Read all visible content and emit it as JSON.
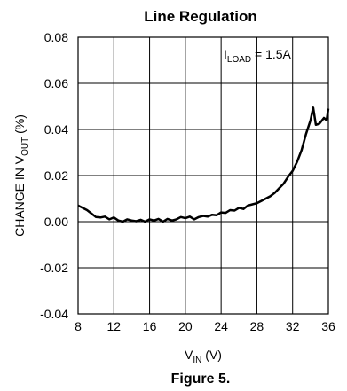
{
  "chart_data": {
    "type": "line",
    "title": "Line Regulation",
    "xlabel": {
      "main": "V",
      "sub": "IN",
      "unit": " (V)"
    },
    "ylabel": {
      "prefix": "CHANGE IN V",
      "sub": "OUT",
      "suffix": " (%)"
    },
    "xlim": [
      8,
      36
    ],
    "ylim": [
      -0.04,
      0.08
    ],
    "xticks": [
      8,
      12,
      16,
      20,
      24,
      28,
      32,
      36
    ],
    "yticks": [
      -0.04,
      -0.02,
      0.0,
      0.02,
      0.04,
      0.06,
      0.08
    ],
    "xtick_labels": [
      "8",
      "12",
      "16",
      "20",
      "24",
      "28",
      "32",
      "36"
    ],
    "ytick_labels": [
      "-0.04",
      "-0.02",
      "0.00",
      "0.02",
      "0.04",
      "0.06",
      "0.08"
    ],
    "grid": true,
    "annotation": {
      "main": "I",
      "sub": "LOAD",
      "suffix": " = 1.5A"
    },
    "series": [
      {
        "x": [
          8,
          8.5,
          9,
          9.5,
          10,
          10.5,
          11,
          11.5,
          12,
          12.5,
          13,
          13.5,
          14,
          14.5,
          15,
          15.5,
          16,
          16.5,
          17,
          17.5,
          18,
          18.5,
          19,
          19.5,
          20,
          20.5,
          21,
          21.5,
          22,
          22.5,
          23,
          23.5,
          24,
          24.5,
          25,
          25.5,
          26,
          26.5,
          27,
          27.5,
          28,
          28.5,
          29,
          29.5,
          30,
          30.5,
          31,
          31.5,
          32,
          32.5,
          33,
          33.5,
          34,
          34.3,
          34.6,
          35,
          35.5,
          35.8,
          36
        ],
        "values": [
          0.007,
          0.006,
          0.005,
          0.0035,
          0.002,
          0.0018,
          0.0022,
          0.001,
          0.0018,
          0.0005,
          0.0,
          0.001,
          0.0005,
          0.0002,
          0.0008,
          0.0,
          0.001,
          0.0005,
          0.0012,
          0.0,
          0.0012,
          0.0005,
          0.001,
          0.002,
          0.0015,
          0.0022,
          0.001,
          0.002,
          0.0025,
          0.0022,
          0.003,
          0.0028,
          0.004,
          0.0038,
          0.005,
          0.0048,
          0.006,
          0.0055,
          0.007,
          0.0075,
          0.008,
          0.009,
          0.01,
          0.011,
          0.0125,
          0.0145,
          0.0165,
          0.0195,
          0.022,
          0.026,
          0.031,
          0.038,
          0.044,
          0.0495,
          0.042,
          0.0425,
          0.045,
          0.044,
          0.049
        ]
      }
    ],
    "caption": "Figure 5."
  }
}
